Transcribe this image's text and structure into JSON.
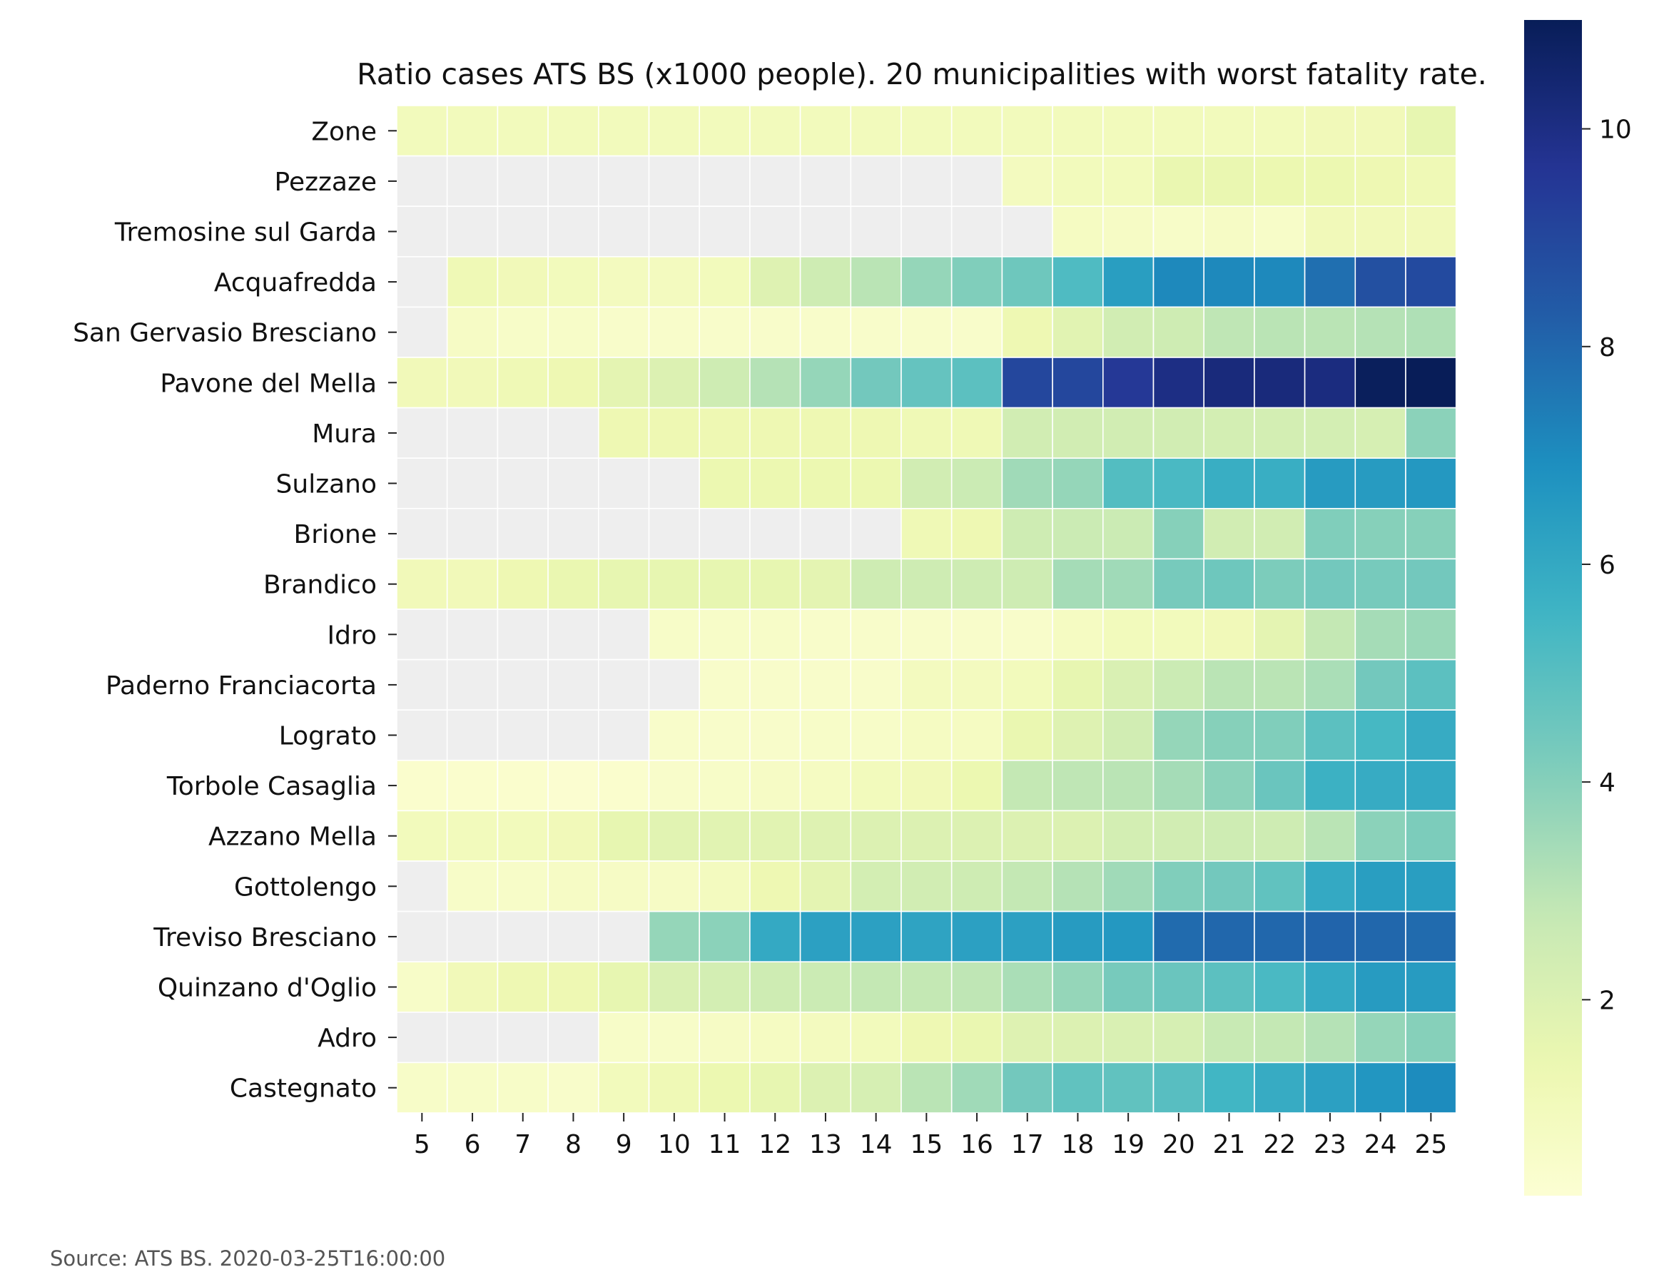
{
  "chart_data": {
    "type": "heatmap",
    "title": "Ratio cases ATS BS (x1000 people). 20 municipalities with worst fatality rate.",
    "xlabel": "",
    "ylabel": "",
    "x": [
      "5",
      "6",
      "7",
      "8",
      "9",
      "10",
      "11",
      "12",
      "13",
      "14",
      "15",
      "16",
      "17",
      "18",
      "19",
      "20",
      "21",
      "22",
      "23",
      "24",
      "25"
    ],
    "y": [
      "Zone",
      "Pezzaze",
      "Tremosine sul Garda",
      "Acquafredda",
      "San Gervasio Bresciano",
      "Pavone del Mella",
      "Mura",
      "Sulzano",
      "Brione",
      "Brandico",
      "Idro",
      "Paderno Franciacorta",
      "Lograto",
      "Torbole Casaglia",
      "Azzano Mella",
      "Gottolengo",
      "Treviso Bresciano",
      "Quinzano d'Oglio",
      "Adro",
      "Castegnato"
    ],
    "values": [
      [
        1.0,
        1.0,
        1.0,
        1.0,
        1.0,
        1.0,
        1.0,
        1.0,
        1.0,
        1.0,
        1.0,
        1.0,
        1.0,
        1.0,
        1.0,
        1.0,
        1.0,
        1.0,
        1.1,
        1.1,
        1.6
      ],
      [
        null,
        null,
        null,
        null,
        null,
        null,
        null,
        null,
        null,
        null,
        null,
        null,
        0.9,
        1.0,
        1.0,
        1.5,
        1.5,
        1.4,
        1.4,
        1.3,
        1.2
      ],
      [
        null,
        null,
        null,
        null,
        null,
        null,
        null,
        null,
        null,
        null,
        null,
        null,
        null,
        0.8,
        0.7,
        0.6,
        0.7,
        0.6,
        1.1,
        1.1,
        1.1
      ],
      [
        null,
        1.2,
        1.1,
        1.0,
        0.9,
        0.9,
        1.0,
        1.9,
        2.5,
        3.0,
        3.7,
        4.1,
        4.5,
        5.2,
        6.4,
        7.1,
        7.1,
        7.1,
        7.8,
        8.7,
        8.9
      ],
      [
        null,
        0.7,
        0.6,
        0.6,
        0.5,
        0.5,
        0.5,
        0.5,
        0.5,
        0.5,
        0.5,
        0.5,
        1.3,
        1.8,
        2.4,
        2.5,
        2.9,
        3.0,
        3.0,
        3.1,
        3.2
      ],
      [
        1.1,
        1.1,
        1.2,
        1.3,
        1.7,
        2.0,
        2.5,
        3.1,
        3.7,
        4.4,
        4.7,
        4.9,
        9.0,
        9.0,
        9.5,
        10.0,
        10.2,
        10.2,
        10.1,
        10.9,
        11.0
      ],
      [
        null,
        null,
        null,
        null,
        1.3,
        1.3,
        1.3,
        1.3,
        1.3,
        1.3,
        1.2,
        1.2,
        2.4,
        2.4,
        2.4,
        2.4,
        2.3,
        2.3,
        2.3,
        2.2,
        3.9
      ],
      [
        null,
        null,
        null,
        null,
        null,
        null,
        1.4,
        1.4,
        1.4,
        1.4,
        2.4,
        2.6,
        3.5,
        3.7,
        5.1,
        5.3,
        5.8,
        5.8,
        6.5,
        6.5,
        6.6
      ],
      [
        null,
        null,
        null,
        null,
        null,
        null,
        null,
        null,
        null,
        null,
        1.2,
        1.3,
        2.5,
        2.6,
        2.6,
        4.0,
        2.4,
        2.4,
        4.1,
        4.0,
        4.0
      ],
      [
        1.1,
        1.1,
        1.3,
        1.5,
        1.6,
        1.6,
        1.6,
        1.6,
        1.7,
        2.5,
        2.5,
        2.5,
        2.5,
        3.4,
        3.5,
        4.3,
        4.5,
        4.2,
        4.4,
        4.3,
        4.4
      ],
      [
        null,
        null,
        null,
        null,
        null,
        0.6,
        0.6,
        0.6,
        0.5,
        0.5,
        0.5,
        0.5,
        0.5,
        0.8,
        1.0,
        1.0,
        1.1,
        1.7,
        2.8,
        3.4,
        3.6
      ],
      [
        null,
        null,
        null,
        null,
        null,
        null,
        0.5,
        0.5,
        0.5,
        0.5,
        0.9,
        0.9,
        1.0,
        1.6,
        2.1,
        2.6,
        3.0,
        3.0,
        3.3,
        4.4,
        4.9
      ],
      [
        null,
        null,
        null,
        null,
        null,
        0.5,
        0.5,
        0.5,
        0.6,
        0.6,
        0.8,
        0.8,
        1.5,
        1.9,
        2.4,
        3.7,
        4.0,
        4.1,
        4.9,
        5.4,
        5.9
      ],
      [
        0.4,
        0.4,
        0.4,
        0.3,
        0.4,
        0.5,
        0.6,
        0.7,
        0.8,
        1.0,
        1.1,
        1.4,
        2.8,
        2.9,
        3.0,
        3.4,
        3.9,
        4.6,
        5.7,
        5.9,
        6.0
      ],
      [
        1.0,
        1.0,
        1.0,
        1.1,
        1.6,
        1.8,
        1.8,
        1.8,
        1.9,
        2.0,
        2.0,
        2.0,
        2.0,
        2.0,
        2.3,
        2.4,
        2.5,
        2.5,
        3.0,
        3.9,
        4.2
      ],
      [
        null,
        0.6,
        0.6,
        0.7,
        0.7,
        0.7,
        0.9,
        1.3,
        1.7,
        2.3,
        2.4,
        2.5,
        2.8,
        3.1,
        3.5,
        4.1,
        4.4,
        4.8,
        6.0,
        6.4,
        6.4
      ],
      [
        null,
        null,
        null,
        null,
        null,
        3.7,
        3.9,
        6.0,
        6.3,
        6.3,
        6.2,
        6.3,
        6.3,
        6.5,
        6.6,
        7.9,
        8.0,
        8.0,
        8.1,
        8.0,
        7.9
      ],
      [
        0.6,
        1.1,
        1.3,
        1.3,
        1.6,
        2.1,
        2.3,
        2.5,
        2.6,
        2.8,
        2.8,
        2.9,
        3.3,
        3.7,
        4.3,
        4.6,
        4.9,
        5.3,
        6.0,
        6.5,
        6.5
      ],
      [
        null,
        null,
        null,
        null,
        0.6,
        0.6,
        0.7,
        0.8,
        0.9,
        1.0,
        1.3,
        1.5,
        1.9,
        2.0,
        2.1,
        2.2,
        2.7,
        2.8,
        3.1,
        3.7,
        4.0
      ],
      [
        0.6,
        0.6,
        0.6,
        0.5,
        1.0,
        1.2,
        1.4,
        1.6,
        2.0,
        2.2,
        3.0,
        3.5,
        4.4,
        4.8,
        4.8,
        5.0,
        5.5,
        5.9,
        6.3,
        6.7,
        7.0
      ]
    ],
    "colormap": "YlGnBu",
    "missing_color": "#eeeeee",
    "vmin": 0,
    "vmax": 11,
    "colorbar_ticks": [
      "2",
      "4",
      "6",
      "8",
      "10"
    ],
    "grid": false,
    "legend": "colorbar-right"
  },
  "source_note": "Source: ATS BS. 2020-03-25T16:00:00"
}
